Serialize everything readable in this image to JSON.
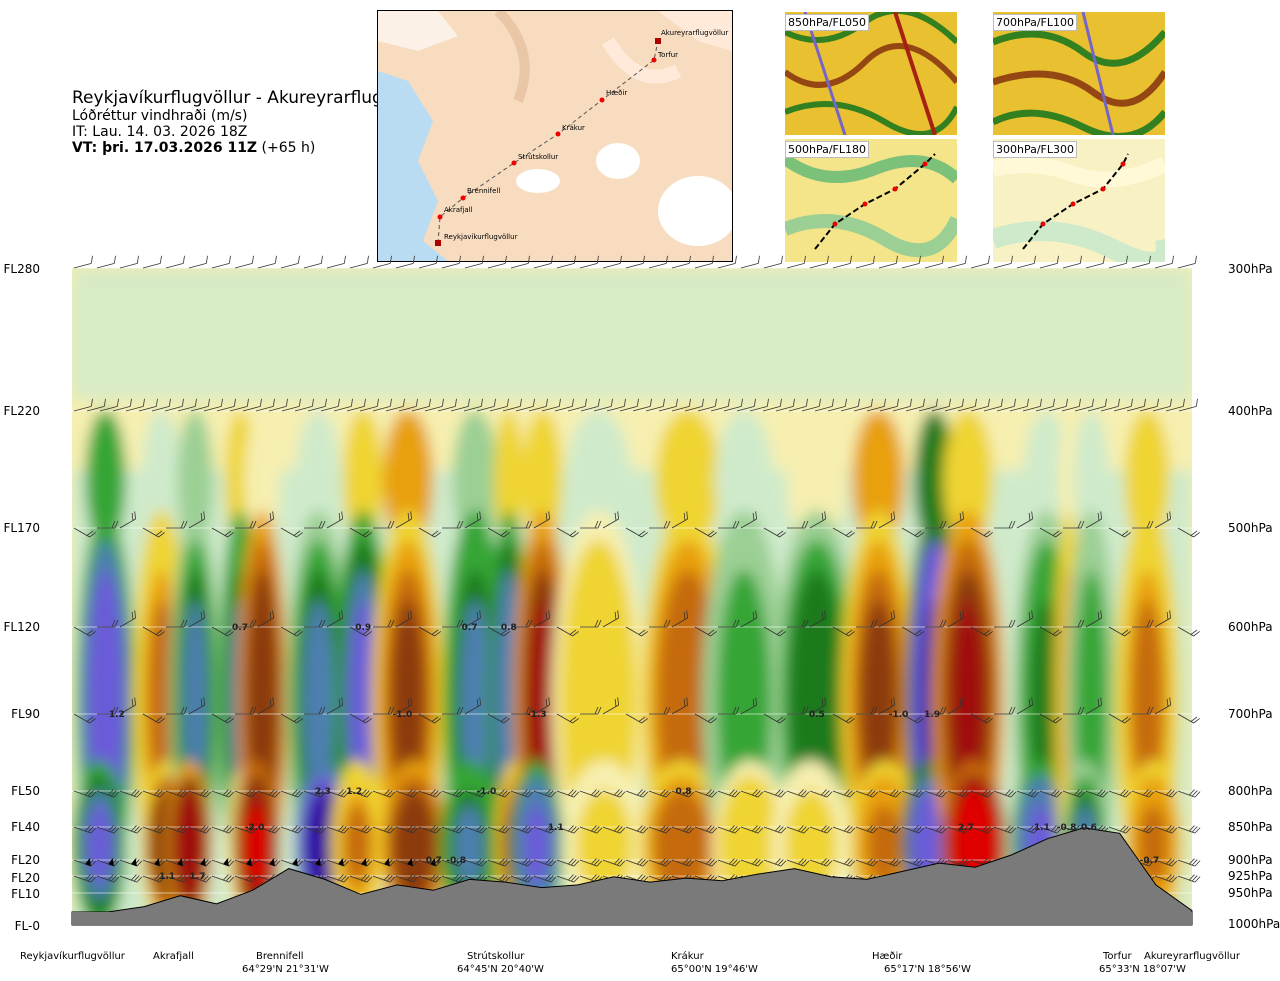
{
  "header": {
    "route": "Reykjavíkurflugvöllur - Akureyrarflugvöllur",
    "variable": "Lóðréttur vindhraði (m/s)",
    "it": "IT: Lau. 14. 03. 2026 18Z",
    "vt_bold": "VT: þri. 17.03.2026 11Z",
    "vt_lead": "(+65 h)"
  },
  "map": {
    "stations": [
      "Akureyrarflugvöllur",
      "Torfur",
      "Hæðir",
      "Krákur",
      "Strútskollur",
      "Brennifell",
      "Akrafjall",
      "Reykjavíkurflugvöllur"
    ]
  },
  "insets": [
    {
      "label": "850hPa/FL050"
    },
    {
      "label": "700hPa/FL100"
    },
    {
      "label": "500hPa/FL180"
    },
    {
      "label": "300hPa/FL300"
    }
  ],
  "colors": {
    "neg_strong": "#2e00a0",
    "neg_mid": "#6a5cd8",
    "neg_weak": "#4d7fb0",
    "green_dark": "#1f7a1f",
    "green_mid": "#36a536",
    "green_light": "#9bcf94",
    "green_pale": "#cfeacb",
    "yellow_pale": "#f6efb0",
    "yellow": "#efd430",
    "orange": "#e8a010",
    "orange_dark": "#c56b10",
    "brown": "#8c3a0f",
    "red_dark": "#a01010",
    "red": "#e00000",
    "terrain": "#7a7a7a"
  },
  "chart_data": {
    "type": "heatmap",
    "title": "Lóðréttur vindhraði (m/s)",
    "x_axis": "distance along route",
    "left_axis": {
      "label": "Flight level",
      "ticks": [
        "FL280",
        "FL220",
        "FL170",
        "FL120",
        "FL90",
        "FL50",
        "FL40",
        "FL20",
        "FL20",
        "FL10",
        "FL-0"
      ]
    },
    "right_axis": {
      "label": "Pressure",
      "ticks": [
        "300hPa",
        "400hPa",
        "500hPa",
        "600hPa",
        "700hPa",
        "800hPa",
        "850hPa",
        "900hPa",
        "925hPa",
        "950hPa",
        "1000hPa"
      ]
    },
    "locations": [
      {
        "name": "Reykjavíkurflugvöllur",
        "coord": ""
      },
      {
        "name": "Akrafjall",
        "coord": ""
      },
      {
        "name": "Brennifell",
        "coord": "64°29'N 21°31'W"
      },
      {
        "name": "Strútskollur",
        "coord": "64°45'N 20°40'W"
      },
      {
        "name": "Krákur",
        "coord": "65°00'N 19°46'W"
      },
      {
        "name": "Hæðir",
        "coord": "65°17'N 18°56'W"
      },
      {
        "name": "Torfur",
        "coord": "65°33'N 18°07'W"
      },
      {
        "name": "Akureyrarflugvöllur",
        "coord": ""
      }
    ],
    "value_labels": [
      {
        "text": "1.2",
        "route_frac": 0.04,
        "hpa": 700
      },
      {
        "text": "0.7",
        "route_frac": 0.15,
        "hpa": 600
      },
      {
        "text": "0.9",
        "route_frac": 0.26,
        "hpa": 600
      },
      {
        "text": "-1.0",
        "route_frac": 0.295,
        "hpa": 700
      },
      {
        "text": "0.7",
        "route_frac": 0.355,
        "hpa": 600
      },
      {
        "text": "0.8",
        "route_frac": 0.39,
        "hpa": 600
      },
      {
        "text": "-1.3",
        "route_frac": 0.415,
        "hpa": 700
      },
      {
        "text": "2.3",
        "route_frac": 0.224,
        "hpa": 800
      },
      {
        "text": "1.2",
        "route_frac": 0.252,
        "hpa": 800
      },
      {
        "text": "-1.0",
        "route_frac": 0.37,
        "hpa": 800
      },
      {
        "text": "-2.0",
        "route_frac": 0.163,
        "hpa": 850
      },
      {
        "text": "1.1",
        "route_frac": 0.432,
        "hpa": 850
      },
      {
        "text": "0.7",
        "route_frac": 0.323,
        "hpa": 900
      },
      {
        "text": "-0.8",
        "route_frac": 0.343,
        "hpa": 900
      },
      {
        "text": "1.1",
        "route_frac": 0.085,
        "hpa": 925
      },
      {
        "text": "1.7",
        "route_frac": 0.112,
        "hpa": 925
      },
      {
        "text": "0.8",
        "route_frac": 0.546,
        "hpa": 800
      },
      {
        "text": "0.5",
        "route_frac": 0.665,
        "hpa": 700
      },
      {
        "text": "-1.0",
        "route_frac": 0.738,
        "hpa": 700
      },
      {
        "text": "1.9",
        "route_frac": 0.768,
        "hpa": 700
      },
      {
        "text": "2.7",
        "route_frac": 0.798,
        "hpa": 850
      },
      {
        "text": "1.1",
        "route_frac": 0.866,
        "hpa": 850
      },
      {
        "text": "-0.8",
        "route_frac": 0.888,
        "hpa": 850
      },
      {
        "text": "0.6",
        "route_frac": 0.908,
        "hpa": 850
      },
      {
        "text": "-0.7",
        "route_frac": 0.962,
        "hpa": 900
      }
    ],
    "columns_m_s": [
      {
        "route_frac": 0.03,
        "upper": -0.3,
        "mid": -1.2,
        "low": -1.0
      },
      {
        "route_frac": 0.08,
        "upper": 0.0,
        "mid": 0.6,
        "low": 1.1
      },
      {
        "route_frac": 0.11,
        "upper": -0.1,
        "mid": -0.6,
        "low": 1.7
      },
      {
        "route_frac": 0.15,
        "upper": 0.2,
        "mid": -0.7,
        "low": 0.4
      },
      {
        "route_frac": 0.17,
        "upper": 0.1,
        "mid": 1.2,
        "low": 2.0
      },
      {
        "route_frac": 0.22,
        "upper": 0.0,
        "mid": -0.6,
        "low": -2.3
      },
      {
        "route_frac": 0.26,
        "upper": 0.3,
        "mid": -0.9,
        "low": 0.6
      },
      {
        "route_frac": 0.3,
        "upper": 0.4,
        "mid": 1.0,
        "low": 1.2
      },
      {
        "route_frac": 0.36,
        "upper": -0.1,
        "mid": -0.7,
        "low": -0.7
      },
      {
        "route_frac": 0.39,
        "upper": 0.2,
        "mid": -0.8,
        "low": 1.0
      },
      {
        "route_frac": 0.42,
        "upper": 0.3,
        "mid": 1.3,
        "low": -1.1
      },
      {
        "route_frac": 0.47,
        "upper": 0.0,
        "mid": 0.3,
        "low": 0.2
      },
      {
        "route_frac": 0.55,
        "upper": 0.2,
        "mid": 0.8,
        "low": 0.8
      },
      {
        "route_frac": 0.6,
        "upper": 0.0,
        "mid": -0.3,
        "low": 0.3
      },
      {
        "route_frac": 0.665,
        "upper": 0.1,
        "mid": -0.5,
        "low": 0.2
      },
      {
        "route_frac": 0.72,
        "upper": 0.4,
        "mid": 1.0,
        "low": 0.7
      },
      {
        "route_frac": 0.77,
        "upper": -0.5,
        "mid": -1.9,
        "low": -1.5
      },
      {
        "route_frac": 0.8,
        "upper": 0.3,
        "mid": 1.5,
        "low": 2.7
      },
      {
        "route_frac": 0.87,
        "upper": 0.0,
        "mid": -0.4,
        "low": -1.1
      },
      {
        "route_frac": 0.89,
        "upper": 0.1,
        "mid": 0.5,
        "low": 0.8
      },
      {
        "route_frac": 0.91,
        "upper": 0.0,
        "mid": -0.3,
        "low": -0.6
      },
      {
        "route_frac": 0.96,
        "upper": 0.2,
        "mid": 0.6,
        "low": 0.7
      }
    ],
    "terrain_m": [
      0,
      0,
      40,
      120,
      60,
      160,
      320,
      240,
      130,
      200,
      160,
      240,
      220,
      180,
      200,
      260,
      220,
      250,
      230,
      280,
      320,
      260,
      240,
      300,
      360,
      330,
      420,
      540,
      620,
      580,
      200,
      10
    ]
  }
}
